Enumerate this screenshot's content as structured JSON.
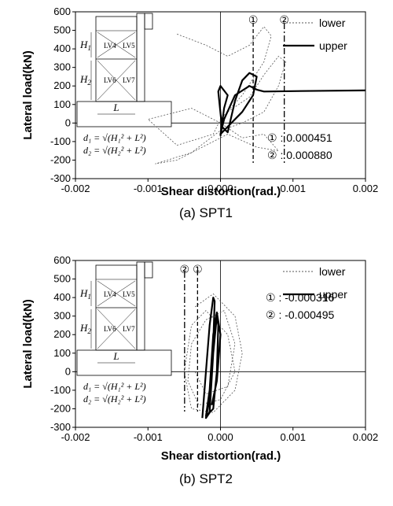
{
  "chart_data": [
    {
      "type": "line",
      "caption": "(a) SPT1",
      "xlabel": "Shear distortion(rad.)",
      "ylabel": "Lateral load(kN)",
      "xlim": [
        -0.002,
        0.002
      ],
      "ylim": [
        -300,
        600
      ],
      "x_ticks": [
        "-0.002",
        "-0.001",
        "0.000",
        "0.001",
        "0.002"
      ],
      "y_ticks": [
        "-300",
        "-200",
        "-100",
        "0",
        "100",
        "200",
        "300",
        "400",
        "500",
        "600"
      ],
      "legend": {
        "position": "top-right",
        "entries": [
          "lower",
          "upper"
        ]
      },
      "series": [
        {
          "name": "lower",
          "style": "dotted",
          "color": "#555555",
          "points": [
            [
              -0.0006,
              480
            ],
            [
              -0.0002,
              420
            ],
            [
              0.0001,
              360
            ],
            [
              0.0004,
              420
            ],
            [
              0.0006,
              520
            ],
            [
              0.0007,
              470
            ],
            [
              0.0006,
              330
            ],
            [
              0.0003,
              150
            ],
            [
              0.0,
              20
            ],
            [
              -0.0001,
              -60
            ],
            [
              -0.0006,
              -120
            ],
            [
              -0.001,
              20
            ],
            [
              -0.0004,
              80
            ],
            [
              0.0,
              0
            ],
            [
              0.0003,
              -80
            ],
            [
              0.0006,
              -60
            ],
            [
              0.0008,
              -150
            ],
            [
              0.0005,
              -130
            ],
            [
              0.0001,
              -60
            ],
            [
              -0.0006,
              -200
            ],
            [
              -0.0009,
              -220
            ],
            [
              -0.0004,
              -160
            ],
            [
              0.0,
              -40
            ],
            [
              0.0003,
              0
            ],
            [
              0.0006,
              60
            ],
            [
              0.0008,
              200
            ],
            [
              0.0009,
              330
            ],
            [
              0.0008,
              360
            ],
            [
              0.0006,
              260
            ],
            [
              0.0004,
              140
            ],
            [
              0.0001,
              60
            ],
            [
              0.0,
              0
            ]
          ]
        },
        {
          "name": "upper",
          "style": "solid",
          "color": "#000000",
          "points": [
            [
              0.0,
              -70
            ],
            [
              5e-05,
              80
            ],
            [
              0.0001,
              150
            ],
            [
              0.0,
              200
            ],
            [
              -3e-05,
              170
            ],
            [
              2e-05,
              -20
            ],
            [
              0.0001,
              -50
            ],
            [
              0.0002,
              120
            ],
            [
              0.0003,
              230
            ],
            [
              0.0004,
              270
            ],
            [
              0.0005,
              250
            ],
            [
              0.00045,
              150
            ],
            [
              0.0003,
              60
            ],
            [
              0.0001,
              -20
            ],
            [
              0.0,
              -60
            ],
            [
              5e-05,
              20
            ],
            [
              0.0002,
              150
            ],
            [
              0.0004,
              200
            ],
            [
              0.0005,
              180
            ],
            [
              0.0006,
              170
            ],
            [
              0.001,
              172
            ],
            [
              0.0015,
              174
            ],
            [
              0.002,
              176
            ]
          ]
        }
      ],
      "reference_lines": [
        {
          "marker": "①",
          "x": 0.000451,
          "style": "dashed"
        },
        {
          "marker": "②",
          "x": 0.00088,
          "style": "dash-dot"
        }
      ],
      "annotations": [
        {
          "marker": "①",
          "text": ": 0.000451"
        },
        {
          "marker": "②",
          "text": ": 0.000880"
        }
      ]
    },
    {
      "type": "line",
      "caption": "(b) SPT2",
      "xlabel": "Shear distortion(rad.)",
      "ylabel": "Lateral load(kN)",
      "xlim": [
        -0.002,
        0.002
      ],
      "ylim": [
        -300,
        600
      ],
      "x_ticks": [
        "-0.002",
        "-0.001",
        "0.000",
        "0.001",
        "0.002"
      ],
      "y_ticks": [
        "-300",
        "-200",
        "-100",
        "0",
        "100",
        "200",
        "300",
        "400",
        "500",
        "600"
      ],
      "legend": {
        "position": "top-right",
        "entries": [
          "lower",
          "upper"
        ]
      },
      "series": [
        {
          "name": "lower",
          "style": "dotted",
          "color": "#555555",
          "points": [
            [
              -0.00035,
              350
            ],
            [
              -0.0001,
              420
            ],
            [
              0.0002,
              300
            ],
            [
              0.0003,
              100
            ],
            [
              0.0002,
              -100
            ],
            [
              -0.0001,
              -220
            ],
            [
              -0.0004,
              -200
            ],
            [
              -0.0005,
              0
            ],
            [
              -0.0004,
              250
            ],
            [
              -0.0002,
              330
            ],
            [
              0.0001,
              200
            ],
            [
              0.0002,
              0
            ],
            [
              0.0,
              -150
            ],
            [
              -0.0003,
              -180
            ],
            [
              -0.00045,
              -50
            ],
            [
              -0.0004,
              150
            ],
            [
              -0.0002,
              280
            ],
            [
              5e-05,
              330
            ],
            [
              0.0002,
              150
            ],
            [
              0.0001,
              -80
            ],
            [
              -0.0002,
              -120
            ],
            [
              -0.00035,
              0
            ]
          ]
        },
        {
          "name": "upper",
          "style": "solid",
          "color": "#000000",
          "points": [
            [
              -0.00025,
              -250
            ],
            [
              -0.0002,
              0
            ],
            [
              -0.00015,
              250
            ],
            [
              -0.0001,
              400
            ],
            [
              -8e-05,
              380
            ],
            [
              -0.0001,
              150
            ],
            [
              -0.00015,
              -150
            ],
            [
              -0.0002,
              -250
            ],
            [
              -0.00015,
              -220
            ],
            [
              -0.0001,
              100
            ],
            [
              -5e-05,
              300
            ],
            [
              -3e-05,
              250
            ],
            [
              -5e-05,
              0
            ],
            [
              -0.0001,
              -200
            ],
            [
              -0.0002,
              -240
            ],
            [
              -0.00015,
              -100
            ],
            [
              -0.0001,
              200
            ],
            [
              -5e-05,
              320
            ],
            [
              0.0,
              200
            ],
            [
              -5e-05,
              -50
            ],
            [
              -0.00012,
              -180
            ]
          ]
        }
      ],
      "reference_lines": [
        {
          "marker": "①",
          "x": -0.000316,
          "style": "dashed"
        },
        {
          "marker": "②",
          "x": -0.000495,
          "style": "dash-dot"
        }
      ],
      "annotations": [
        {
          "marker": "①",
          "text": ": -0.000316"
        },
        {
          "marker": "②",
          "text": ": -0.000495"
        }
      ]
    }
  ],
  "inset": {
    "h1": "H",
    "h1_sub": "1",
    "h2": "H",
    "h2_sub": "2",
    "l": "L",
    "labels": [
      "LV4",
      "LV5",
      "LV6",
      "LV7"
    ],
    "eq1": "d₁ = √(H₁² + L²)",
    "eq2": "d₂ = √(H₂² + L²)"
  }
}
